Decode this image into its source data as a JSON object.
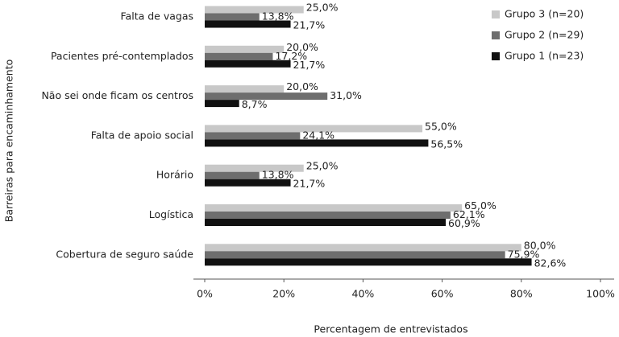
{
  "chart_data": {
    "type": "hbar",
    "x_label": "Percentagem de entrevistados",
    "y_label": "Barreiras para encaminhamento",
    "categories": [
      "Falta de vagas",
      "Pacientes pré-contemplados",
      "Não sei onde ficam os centros",
      "Falta de apoio social",
      "Horário",
      "Logística",
      "Cobertura de seguro saúde"
    ],
    "series": [
      {
        "name": "Grupo 3 (n=20)",
        "color": "#c8c8c8",
        "values": [
          25.0,
          20.0,
          20.0,
          55.0,
          25.0,
          65.0,
          80.0
        ],
        "value_labels": [
          "25,0%",
          "20,0%",
          "20,0%",
          "55,0%",
          "25,0%",
          "65,0%",
          "80,0%"
        ]
      },
      {
        "name": "Grupo 2 (n=29)",
        "color": "#6e6e6e",
        "values": [
          13.8,
          17.2,
          31.0,
          24.1,
          13.8,
          62.1,
          75.9
        ],
        "value_labels": [
          "13,8%",
          "17,2%",
          "31,0%",
          "24,1%",
          "13,8%",
          "62,1%",
          "75,9%"
        ]
      },
      {
        "name": "Grupo 1 (n=23)",
        "color": "#111111",
        "values": [
          21.7,
          21.7,
          8.7,
          56.5,
          21.7,
          60.9,
          82.6
        ],
        "value_labels": [
          "21,7%",
          "21,7%",
          "8,7%",
          "56,5%",
          "21,7%",
          "60,9%",
          "82,6%"
        ]
      }
    ],
    "xlim": [
      0,
      100
    ],
    "xticks": [
      {
        "value": 0,
        "label": "0%"
      },
      {
        "value": 20,
        "label": "20%"
      },
      {
        "value": 40,
        "label": "40%"
      },
      {
        "value": 60,
        "label": "60%"
      },
      {
        "value": 80,
        "label": "80%"
      },
      {
        "value": 100,
        "label": "100%"
      }
    ],
    "legend": "top-right",
    "grid": false
  }
}
